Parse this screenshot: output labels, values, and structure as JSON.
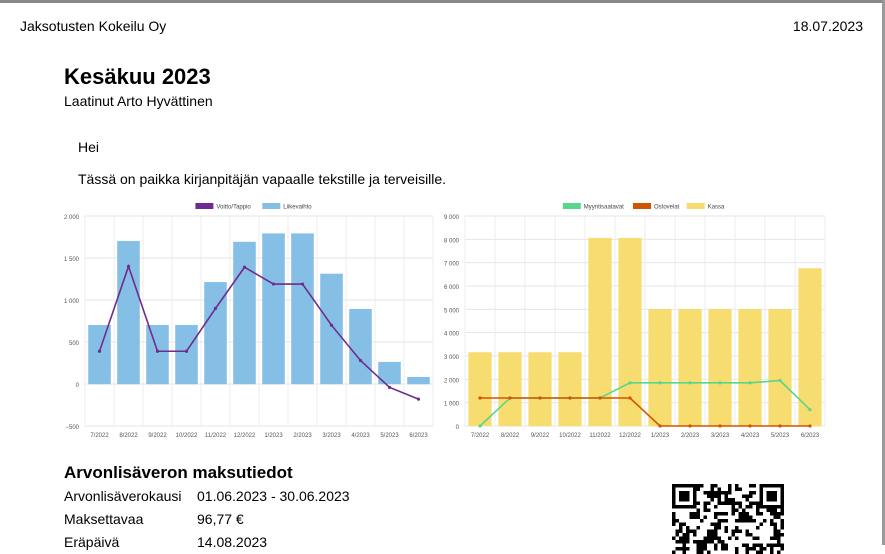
{
  "header": {
    "company": "Jaksotusten Kokeilu Oy",
    "date": "18.07.2023"
  },
  "report": {
    "title": "Kesäkuu 2023",
    "author": "Laatinut Arto Hyvättinen"
  },
  "message": {
    "greeting": "Hei",
    "body": "Tässä on paikka kirjanpitäjän vapaalle tekstille ja terveisille."
  },
  "colors": {
    "purple": "#6f2b8f",
    "blue": "#85bfe6",
    "green": "#58d68d",
    "orange": "#d35400",
    "yellow": "#f7dc6f"
  },
  "chart_data": [
    {
      "type": "bar",
      "categories": [
        "7/2022",
        "8/2022",
        "9/2022",
        "10/2022",
        "11/2022",
        "12/2022",
        "1/2023",
        "2/2023",
        "3/2023",
        "4/2023",
        "5/2023",
        "6/2023"
      ],
      "series": [
        {
          "name": "Voitto/Tappio",
          "type": "line",
          "color": "#6f2b8f",
          "values": [
            390,
            1400,
            390,
            390,
            900,
            1390,
            1190,
            1190,
            700,
            280,
            -40,
            -180
          ]
        },
        {
          "name": "Liikevaihto",
          "type": "bar",
          "color": "#85bfe6",
          "values": [
            700,
            1700,
            700,
            700,
            1210,
            1690,
            1790,
            1790,
            1310,
            890,
            260,
            80
          ]
        }
      ],
      "yticks": [
        "2 000",
        "1 500",
        "1 000",
        "500",
        "0",
        "−500"
      ],
      "ylim": [
        -500,
        2000
      ],
      "legend": "top"
    },
    {
      "type": "bar",
      "categories": [
        "7/2022",
        "8/2022",
        "9/2022",
        "10/2022",
        "11/2022",
        "12/2022",
        "1/2023",
        "2/2023",
        "3/2023",
        "4/2023",
        "5/2023",
        "6/2023"
      ],
      "series": [
        {
          "name": "Myyntisaatavat",
          "type": "line",
          "color": "#58d68d",
          "values": [
            0,
            1200,
            1200,
            1200,
            1200,
            1850,
            1850,
            1850,
            1850,
            1850,
            1950,
            700
          ]
        },
        {
          "name": "Ostovelat",
          "type": "line",
          "color": "#d35400",
          "values": [
            1200,
            1200,
            1200,
            1200,
            1200,
            1200,
            0,
            0,
            0,
            0,
            0,
            0
          ]
        },
        {
          "name": "Kassa",
          "type": "bar",
          "color": "#f7dc6f",
          "values": [
            3150,
            3150,
            3150,
            3150,
            8050,
            8050,
            5000,
            5000,
            5000,
            5000,
            5000,
            6750
          ]
        }
      ],
      "yticks": [
        "9 000",
        "8 000",
        "7 000",
        "6 000",
        "5 000",
        "4 000",
        "3 000",
        "2 000",
        "1 000",
        "0"
      ],
      "ylim": [
        0,
        9000
      ],
      "legend": "top"
    }
  ],
  "vat": {
    "title": "Arvonlisäveron maksutiedot",
    "rows": [
      {
        "label": "Arvonlisäverokausi",
        "value": "01.06.2023 - 30.06.2023"
      },
      {
        "label": "Maksettavaa",
        "value": "96,77 €"
      },
      {
        "label": "Eräpäivä",
        "value": "14.08.2023"
      }
    ]
  }
}
